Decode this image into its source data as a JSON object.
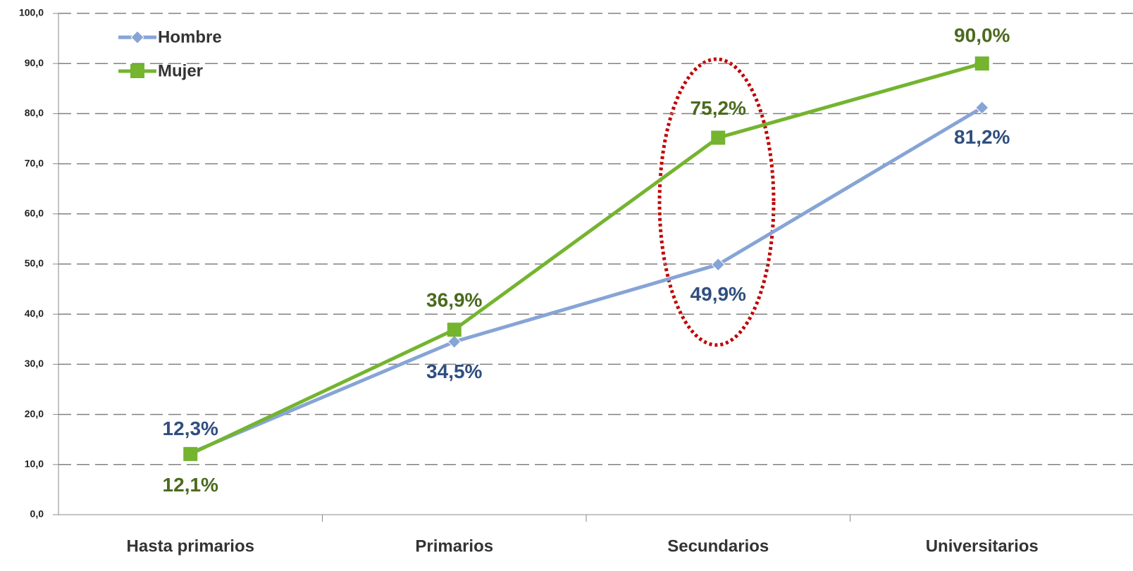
{
  "chart_data": {
    "type": "line",
    "categories": [
      "Hasta primarios",
      "Primarios",
      "Secundarios",
      "Universitarios"
    ],
    "series": [
      {
        "name": "Hombre",
        "color": "#86a4d6",
        "label_color": "#2f4f7f",
        "marker": "diamond",
        "values": [
          12.3,
          34.5,
          49.9,
          81.2
        ],
        "value_labels": [
          "12,3%",
          "34,5%",
          "49,9%",
          "81,2%"
        ]
      },
      {
        "name": "Mujer",
        "color": "#74b42f",
        "label_color": "#4b6a1e",
        "marker": "square",
        "values": [
          12.1,
          36.9,
          75.2,
          90.0
        ],
        "value_labels": [
          "12,1%",
          "36,9%",
          "75,2%",
          "90,0%"
        ]
      }
    ],
    "ylim": [
      0,
      100
    ],
    "yticks": [
      {
        "value": 0,
        "label": "0,0"
      },
      {
        "value": 10,
        "label": "10,0"
      },
      {
        "value": 20,
        "label": "20,0"
      },
      {
        "value": 30,
        "label": "30,0"
      },
      {
        "value": 40,
        "label": "40,0"
      },
      {
        "value": 50,
        "label": "50,0"
      },
      {
        "value": 60,
        "label": "60,0"
      },
      {
        "value": 70,
        "label": "70,0"
      },
      {
        "value": 80,
        "label": "80,0"
      },
      {
        "value": 90,
        "label": "90,0"
      },
      {
        "value": 100,
        "label": "100,0"
      }
    ],
    "grid": true,
    "legend": "top-left"
  }
}
